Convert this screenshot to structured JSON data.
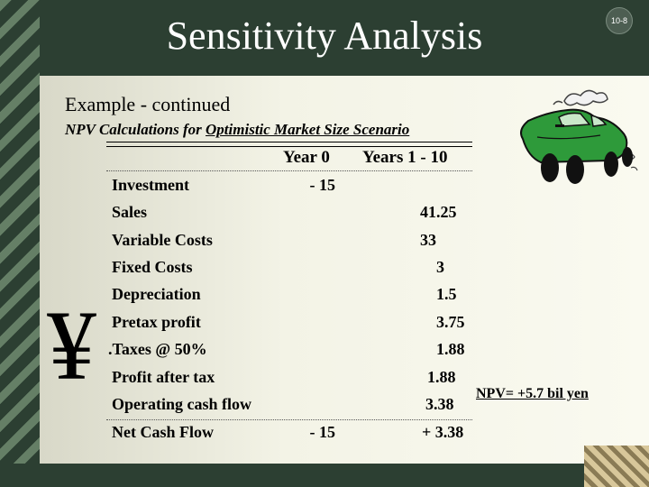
{
  "slide": {
    "title": "Sensitivity Analysis",
    "page_number": "10-8",
    "subtitle": "Example - continued",
    "caption_prefix": "NPV Calculations for ",
    "caption_underlined": "Optimistic Market Size Scenario"
  },
  "table": {
    "headers": {
      "year0": "Year 0",
      "years": "Years 1 - 10"
    },
    "rows": [
      {
        "label": "Investment",
        "y0": "- 15",
        "y110": ""
      },
      {
        "label": "Sales",
        "y0": "",
        "y110": "41.25"
      },
      {
        "label": "Variable Costs",
        "y0": "",
        "y110": "33"
      },
      {
        "label": "Fixed Costs",
        "y0": "",
        "y110": "3"
      },
      {
        "label": "Depreciation",
        "y0": "",
        "y110": "1.5"
      },
      {
        "label": "Pretax profit",
        "y0": "",
        "y110": "3.75"
      },
      {
        "label": ".Taxes @ 50%",
        "y0": "",
        "y110": "1.88"
      },
      {
        "label": "Profit after tax",
        "y0": "",
        "y110": "1.88"
      },
      {
        "label": "Operating cash flow",
        "y0": "",
        "y110": "3.38"
      },
      {
        "label": "Net Cash Flow",
        "y0": "- 15",
        "y110": "+ 3.38"
      }
    ]
  },
  "npv_note": "NPV= +5.7 bil yen",
  "currency_symbol": "¥",
  "icons": {
    "illustration": "car-illustration-icon"
  },
  "colors": {
    "frame": "#2c3f32",
    "content_bg": "#f3f3e6",
    "car": "#2e9a3a"
  }
}
